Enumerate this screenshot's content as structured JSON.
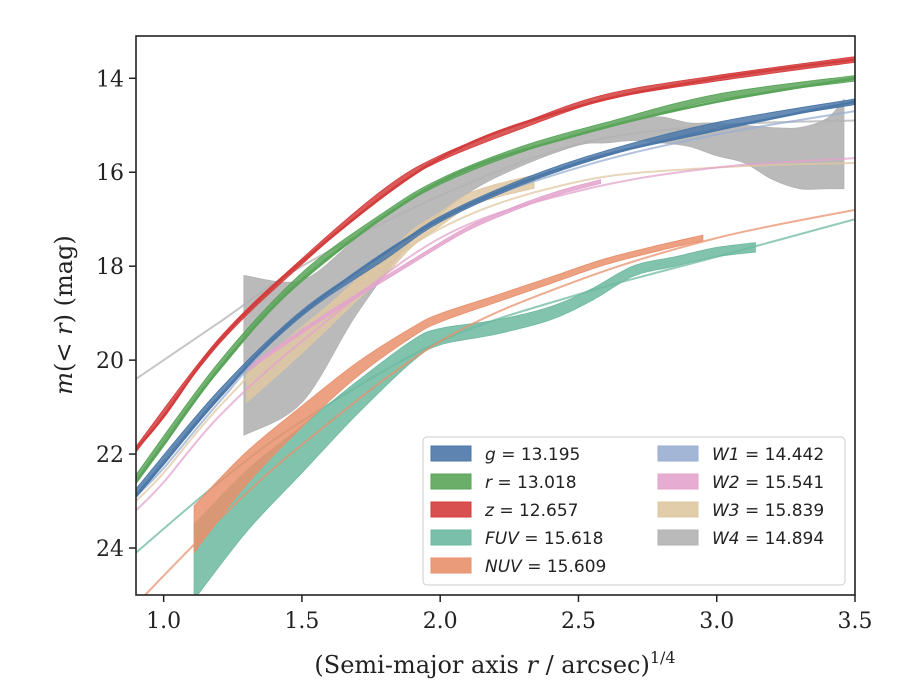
{
  "chart_data": {
    "type": "line",
    "xlabel": "(Semi-major axis r / arcsec)",
    "xlabel_main": "(Semi-major axis ",
    "xlabel_var": "r",
    "xlabel_rest": " / arcsec)",
    "xlabel_sup": "1/4",
    "ylabel": "m(< r) (mag)",
    "ylabel_m": "m",
    "ylabel_paren_open": "(",
    "ylabel_lt": "< ",
    "ylabel_r": "r",
    "ylabel_paren_close": ")",
    "ylabel_unit": " (mag)",
    "xlim": [
      0.9,
      3.5
    ],
    "ylim": [
      25.0,
      13.1
    ],
    "y_inverted": true,
    "xticks": [
      1.0,
      1.5,
      2.0,
      2.5,
      3.0,
      3.5
    ],
    "xtick_labels": [
      "1.0",
      "1.5",
      "2.0",
      "2.5",
      "3.0",
      "3.5"
    ],
    "yticks": [
      14,
      16,
      18,
      20,
      22,
      24
    ],
    "ytick_labels": [
      "14",
      "16",
      "18",
      "20",
      "22",
      "24"
    ],
    "grid": false,
    "legend_position": "lower-right",
    "series": [
      {
        "name": "g",
        "total": "13.195",
        "color": "#4c78a8",
        "model_x": [
          0.9,
          1.0,
          1.2,
          1.5,
          2.0,
          2.5,
          3.0,
          3.5
        ],
        "model_y": [
          22.9,
          22.2,
          20.8,
          19.0,
          17.0,
          15.8,
          15.1,
          14.5
        ],
        "band_x": [
          0.9,
          1.2,
          1.5,
          1.8,
          2.0,
          2.3,
          2.6,
          3.0,
          3.5
        ],
        "band_mid": [
          22.8,
          20.7,
          19.0,
          17.8,
          17.0,
          16.2,
          15.6,
          15.0,
          14.5
        ],
        "band_width": [
          0.12,
          0.12,
          0.12,
          0.12,
          0.12,
          0.12,
          0.12,
          0.12,
          0.12
        ]
      },
      {
        "name": "r",
        "total": "13.018",
        "color": "#5aa55a",
        "model_x": [
          0.9,
          1.0,
          1.2,
          1.5,
          2.0,
          2.5,
          3.0,
          3.5
        ],
        "model_y": [
          22.6,
          21.8,
          20.2,
          18.3,
          16.2,
          15.2,
          14.5,
          14.0
        ],
        "band_x": [
          0.9,
          1.2,
          1.5,
          1.8,
          2.0,
          2.3,
          2.6,
          3.0,
          3.5
        ],
        "band_mid": [
          22.5,
          20.1,
          18.2,
          16.9,
          16.2,
          15.5,
          15.0,
          14.4,
          14.0
        ],
        "band_width": [
          0.12,
          0.12,
          0.12,
          0.12,
          0.12,
          0.12,
          0.12,
          0.12,
          0.12
        ]
      },
      {
        "name": "z",
        "total": "12.657",
        "color": "#d43d3d",
        "model_x": [
          0.9,
          1.0,
          1.2,
          1.5,
          2.0,
          2.5,
          3.0,
          3.5
        ],
        "model_y": [
          21.9,
          21.2,
          19.6,
          17.9,
          15.7,
          14.6,
          14.0,
          13.6
        ],
        "band_x": [
          0.9,
          1.2,
          1.5,
          1.8,
          2.0,
          2.3,
          2.6,
          3.0,
          3.5
        ],
        "band_mid": [
          21.9,
          19.6,
          17.9,
          16.4,
          15.7,
          15.0,
          14.4,
          14.0,
          13.6
        ],
        "band_width": [
          0.12,
          0.12,
          0.12,
          0.12,
          0.12,
          0.12,
          0.12,
          0.12,
          0.12
        ]
      },
      {
        "name": "FUV",
        "total": "15.618",
        "color": "#6cb8a0",
        "model_x": [
          0.9,
          1.2,
          1.5,
          2.0,
          2.5,
          3.0,
          3.5
        ],
        "model_y": [
          24.1,
          22.6,
          21.3,
          19.6,
          18.6,
          17.8,
          17.0
        ],
        "band_x": [
          1.11,
          1.3,
          1.5,
          1.7,
          1.9,
          2.0,
          2.2,
          2.4,
          2.55,
          2.7,
          2.85,
          3.0,
          3.14
        ],
        "band_mid": [
          24.3,
          23.0,
          21.9,
          20.8,
          19.8,
          19.5,
          19.3,
          19.0,
          18.6,
          18.1,
          17.9,
          17.7,
          17.6
        ],
        "band_width": [
          1.6,
          1.3,
          1.0,
          0.7,
          0.45,
          0.35,
          0.3,
          0.28,
          0.25,
          0.22,
          0.2,
          0.2,
          0.2
        ]
      },
      {
        "name": "NUV",
        "total": "15.609",
        "color": "#e8906c",
        "model_x": [
          0.9,
          1.2,
          1.5,
          2.0,
          2.5,
          3.0,
          3.5
        ],
        "model_y": [
          25.2,
          23.4,
          21.8,
          19.6,
          18.3,
          17.4,
          16.8
        ],
        "band_x": [
          1.11,
          1.3,
          1.5,
          1.7,
          1.9,
          2.0,
          2.2,
          2.4,
          2.6,
          2.8,
          2.95
        ],
        "band_mid": [
          23.6,
          22.3,
          21.2,
          20.2,
          19.4,
          19.1,
          18.7,
          18.3,
          17.9,
          17.6,
          17.4
        ],
        "band_width": [
          1.0,
          0.7,
          0.45,
          0.3,
          0.2,
          0.18,
          0.15,
          0.14,
          0.13,
          0.12,
          0.12
        ]
      },
      {
        "name": "W1",
        "total": "14.442",
        "color": "#9aaed2",
        "model_x": [
          0.9,
          1.0,
          1.2,
          1.5,
          2.0,
          2.5,
          3.0,
          3.5
        ],
        "model_y": [
          22.9,
          22.3,
          20.9,
          19.0,
          17.0,
          15.9,
          15.2,
          14.7
        ],
        "band_x": [],
        "band_mid": [],
        "band_width": []
      },
      {
        "name": "W2",
        "total": "15.541",
        "color": "#e3a3cc",
        "model_x": [
          0.9,
          1.0,
          1.2,
          1.5,
          2.0,
          2.5,
          3.0,
          3.5
        ],
        "model_y": [
          23.2,
          22.6,
          21.2,
          19.6,
          17.4,
          16.4,
          15.9,
          15.7
        ],
        "band_x": [
          1.3,
          1.6,
          1.9,
          2.1,
          2.3,
          2.45,
          2.58
        ],
        "band_mid": [
          20.2,
          19.0,
          17.9,
          17.2,
          16.7,
          16.4,
          16.2
        ],
        "band_width": [
          0.08,
          0.08,
          0.08,
          0.08,
          0.08,
          0.08,
          0.08
        ]
      },
      {
        "name": "W3",
        "total": "15.839",
        "color": "#dfc8a2",
        "model_x": [
          0.9,
          1.0,
          1.2,
          1.5,
          2.0,
          2.5,
          3.0,
          3.5
        ],
        "model_y": [
          23.0,
          22.4,
          21.0,
          19.3,
          17.2,
          16.2,
          15.9,
          15.8
        ],
        "band_x": [
          1.3,
          1.5,
          1.7,
          1.8,
          1.9,
          2.0,
          2.1,
          2.2,
          2.34
        ],
        "band_mid": [
          20.6,
          19.6,
          18.5,
          18.0,
          17.4,
          17.0,
          16.6,
          16.4,
          16.2
        ],
        "band_width": [
          0.6,
          0.5,
          0.45,
          0.4,
          0.35,
          0.3,
          0.28,
          0.28,
          0.28
        ]
      },
      {
        "name": "W4",
        "total": "14.894",
        "color": "#b2b2b2",
        "model_x": [
          0.9,
          1.2,
          1.5,
          2.0,
          2.5,
          3.0,
          3.5
        ],
        "model_y": [
          20.4,
          19.2,
          18.0,
          16.5,
          15.4,
          15.0,
          14.9
        ],
        "band_x": [
          1.29,
          1.5,
          1.7,
          1.9,
          2.1,
          2.3,
          2.5,
          2.6,
          2.7,
          2.8,
          2.9,
          3.0,
          3.1,
          3.2,
          3.3,
          3.4,
          3.46
        ],
        "band_mid": [
          19.9,
          19.6,
          18.2,
          17.0,
          16.2,
          15.7,
          15.3,
          15.2,
          15.1,
          15.1,
          15.2,
          15.3,
          15.4,
          15.6,
          15.7,
          15.6,
          15.4
        ],
        "band_width": [
          3.4,
          2.6,
          1.6,
          0.9,
          0.5,
          0.3,
          0.25,
          0.35,
          0.45,
          0.55,
          0.5,
          0.7,
          0.8,
          1.1,
          1.3,
          1.5,
          1.9
        ]
      }
    ]
  }
}
